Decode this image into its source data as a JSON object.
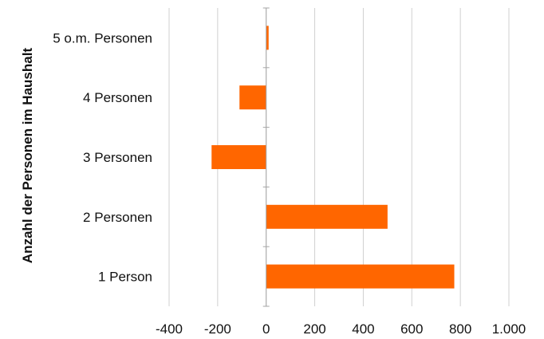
{
  "chart_data": {
    "type": "bar",
    "orientation": "horizontal",
    "ylabel": "Anzahl der Personen im Haushalt",
    "xlabel": "",
    "categories": [
      "5 o.m. Personen",
      "4 Personen",
      "3 Personen",
      "2 Personen",
      "1 Person"
    ],
    "values": [
      10,
      -110,
      -225,
      500,
      775
    ],
    "xlim": [
      -400,
      1000
    ],
    "x_ticks": [
      -400,
      -200,
      0,
      200,
      400,
      600,
      800,
      1000
    ],
    "x_tick_labels": [
      "-400",
      "-200",
      "0",
      "200",
      "400",
      "600",
      "800",
      "1.000"
    ],
    "grid": "vertical",
    "legend": "none",
    "bar_color": "#ff6600"
  }
}
